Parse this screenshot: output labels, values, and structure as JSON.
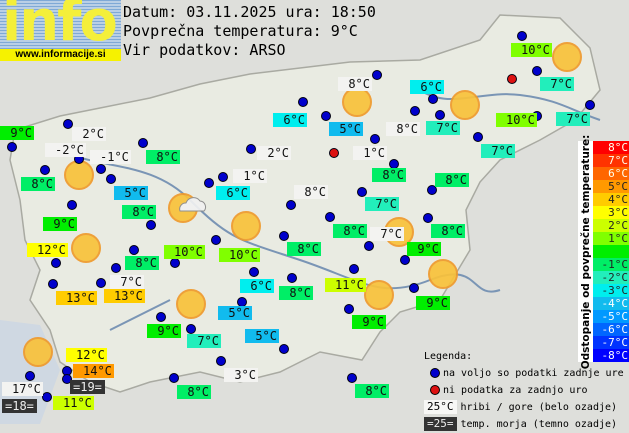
{
  "logo": {
    "text": "info",
    "url": "www.informacije.si"
  },
  "header": {
    "date_line": "Datum: 03.11.2025 ura: 18:50",
    "avg_line": "Povprečna temperatura: 9°C",
    "source_line": "Vir podatkov: ARSO"
  },
  "average_temp": 9,
  "colorbar": {
    "title": "Odstopanje od povprečne temperature:",
    "rows": [
      {
        "label": "8°C",
        "color": "#ff0000"
      },
      {
        "label": "7°C",
        "color": "#ff3300"
      },
      {
        "label": "6°C",
        "color": "#ff6600"
      },
      {
        "label": "5°C",
        "color": "#ff9900"
      },
      {
        "label": "4°C",
        "color": "#ffcc00"
      },
      {
        "label": "3°C",
        "color": "#ffff00"
      },
      {
        "label": "2°C",
        "color": "#ccff00"
      },
      {
        "label": "1°C",
        "color": "#80ff00"
      },
      {
        "label": "",
        "color": "#00ee00"
      },
      {
        "label": "-1°C",
        "color": "#00ee66"
      },
      {
        "label": "-2°C",
        "color": "#22eebb"
      },
      {
        "label": "-3°C",
        "color": "#00eeee"
      },
      {
        "label": "-4°C",
        "color": "#11bbee"
      },
      {
        "label": "-5°C",
        "color": "#0099ff"
      },
      {
        "label": "-6°C",
        "color": "#0066ff"
      },
      {
        "label": "-7°C",
        "color": "#0033ff"
      },
      {
        "label": "-8°C",
        "color": "#0000ff"
      }
    ]
  },
  "legend": {
    "title": "Legenda:",
    "available": "na voljo so podatki zadnje ure",
    "missing": "ni podatka za zadnjo uro",
    "hill_sample": "25°C",
    "hill_text": "hribi / gore (belo ozadje)",
    "sea_sample": "=25=",
    "sea_text": "temp. morja (temno ozadje)",
    "dot_colors": {
      "available": "#0000cc",
      "missing": "#dd1111"
    }
  },
  "stations": [
    {
      "temp": "2°C",
      "kind": "hill"
    },
    {
      "temp": "-2°C",
      "kind": "hill"
    },
    {
      "temp": "-1°C",
      "kind": "hill"
    },
    {
      "temp": "8°C",
      "kind": "land"
    },
    {
      "temp": "8°C",
      "kind": "land"
    },
    {
      "temp": "5°C",
      "kind": "land"
    },
    {
      "temp": "9°C",
      "kind": "land"
    },
    {
      "temp": "8°C",
      "kind": "land"
    },
    {
      "temp": "12°C",
      "kind": "land"
    },
    {
      "temp": "8°C",
      "kind": "land"
    },
    {
      "temp": "10°C",
      "kind": "land"
    },
    {
      "temp": "7°C",
      "kind": "hill"
    },
    {
      "temp": "13°C",
      "kind": "land"
    },
    {
      "temp": "13°C",
      "kind": "land"
    },
    {
      "temp": "17°C",
      "kind": "hill"
    },
    {
      "temp": "=18=",
      "kind": "sea"
    },
    {
      "temp": "12°C",
      "kind": "land"
    },
    {
      "temp": "14°C",
      "kind": "land"
    },
    {
      "temp": "=19=",
      "kind": "sea"
    },
    {
      "temp": "11°C",
      "kind": "land"
    },
    {
      "temp": "9°C",
      "kind": "land"
    },
    {
      "temp": "7°C",
      "kind": "land"
    },
    {
      "temp": "5°C",
      "kind": "land"
    },
    {
      "temp": "5°C",
      "kind": "land"
    },
    {
      "temp": "3°C",
      "kind": "hill"
    },
    {
      "temp": "8°C",
      "kind": "land"
    },
    {
      "temp": "9°C",
      "kind": "land"
    },
    {
      "temp": "8°C",
      "kind": "land"
    },
    {
      "temp": "8°C",
      "kind": "hill"
    },
    {
      "temp": "6°C",
      "kind": "land"
    },
    {
      "temp": "5°C",
      "kind": "land"
    },
    {
      "temp": "6°C",
      "kind": "land"
    },
    {
      "temp": "8°C",
      "kind": "hill"
    },
    {
      "temp": "1°C",
      "kind": "hill"
    },
    {
      "temp": "2°C",
      "kind": "hill"
    },
    {
      "temp": "8°C",
      "kind": "land"
    },
    {
      "temp": "1°C",
      "kind": "hill"
    },
    {
      "temp": "6°C",
      "kind": "land"
    },
    {
      "temp": "8°C",
      "kind": "hill"
    },
    {
      "temp": "7°C",
      "kind": "land"
    },
    {
      "temp": "10°C",
      "kind": "land"
    },
    {
      "temp": "7°C",
      "kind": "land"
    },
    {
      "temp": "7°C",
      "kind": "land"
    },
    {
      "temp": "10°C",
      "kind": "land"
    },
    {
      "temp": "7°C",
      "kind": "land"
    },
    {
      "temp": "7°C",
      "kind": "land"
    },
    {
      "temp": "8°C",
      "kind": "land"
    },
    {
      "temp": "8°C",
      "kind": "land"
    },
    {
      "temp": "8°C",
      "kind": "land"
    },
    {
      "temp": "10°C",
      "kind": "land"
    },
    {
      "temp": "7°C",
      "kind": "hill"
    },
    {
      "temp": "8°C",
      "kind": "land"
    },
    {
      "temp": "9°C",
      "kind": "land"
    },
    {
      "temp": "6°C",
      "kind": "land"
    },
    {
      "temp": "8°C",
      "kind": "land"
    },
    {
      "temp": "11°C",
      "kind": "land"
    },
    {
      "temp": "9°C",
      "kind": "land"
    },
    {
      "temp": "9°C",
      "kind": "land"
    }
  ],
  "missing_stations": 2,
  "weather_icons": [
    "sun",
    "sun",
    "sun-cloud",
    "sun",
    "sun",
    "sun",
    "sun",
    "sun",
    "sun",
    "sun",
    "sun",
    "sun",
    "sun"
  ]
}
